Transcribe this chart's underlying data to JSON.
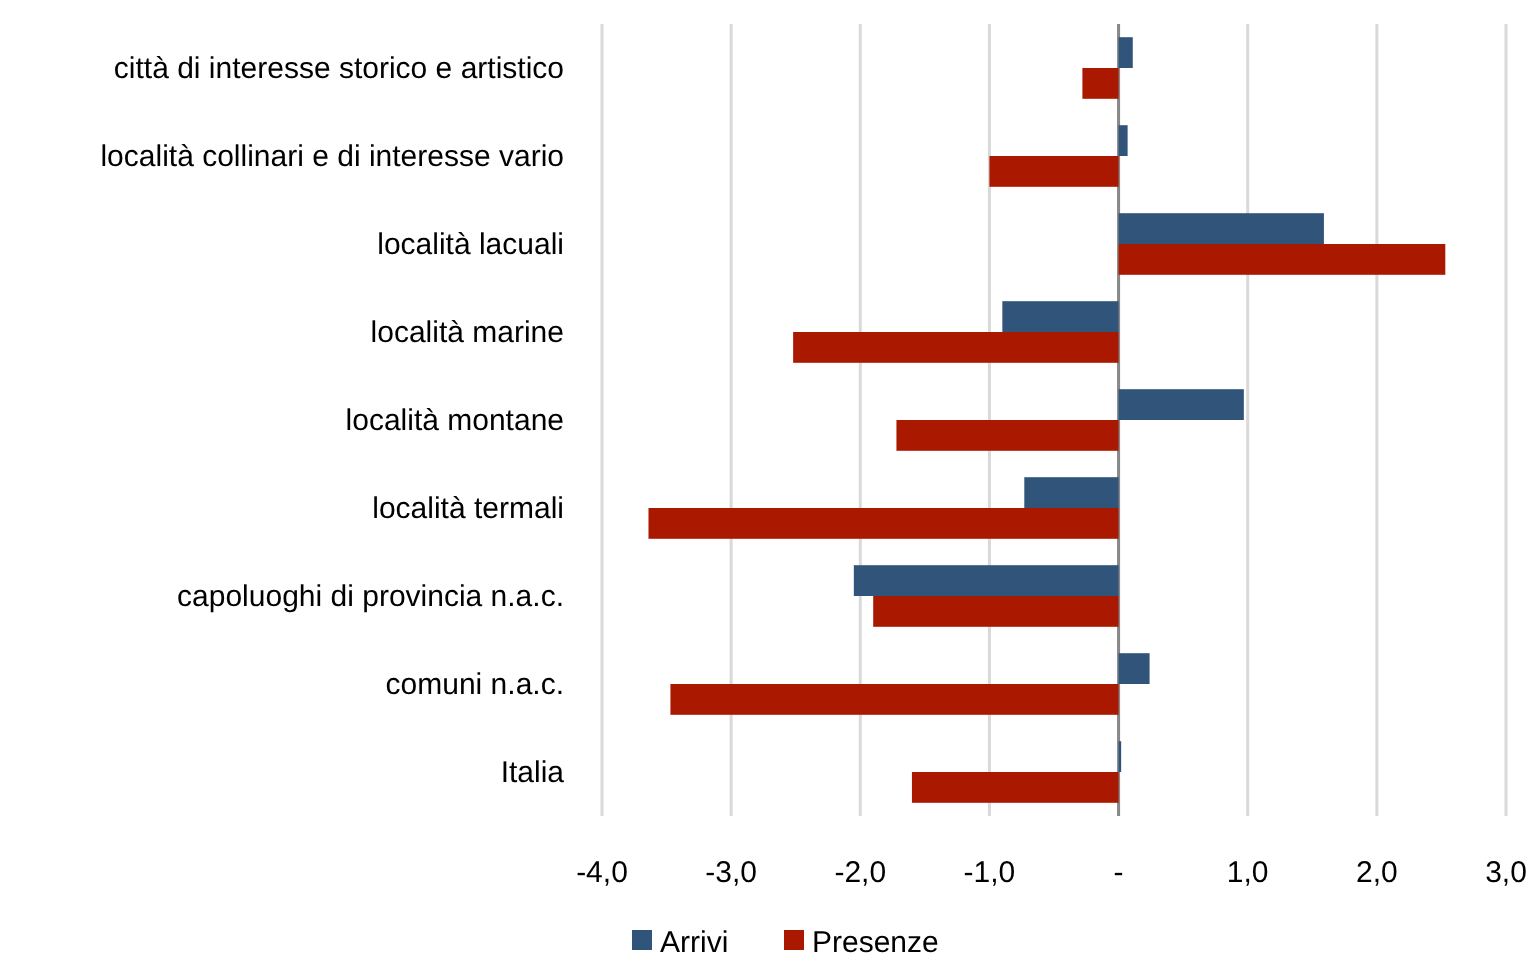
{
  "chart_data": {
    "type": "bar",
    "orientation": "horizontal",
    "categories": [
      "città di interesse storico e artistico",
      "località collinari e di interesse vario",
      "località lacuali",
      "località marine",
      "località montane",
      "località termali",
      "capoluoghi di provincia  n.a.c.",
      "comuni  n.a.c.",
      "Italia"
    ],
    "series": [
      {
        "name": "Arrivi",
        "color": "#30547a",
        "values": [
          0.11,
          0.07,
          1.59,
          -0.9,
          0.97,
          -0.73,
          -2.05,
          0.24,
          0.02
        ]
      },
      {
        "name": "Presenze",
        "color": "#aa1800",
        "values": [
          -0.28,
          -1.0,
          2.53,
          -2.52,
          -1.72,
          -3.64,
          -1.9,
          -3.47,
          -1.6
        ]
      }
    ],
    "xlim": [
      -4,
      3
    ],
    "xticks": [
      {
        "value": -4,
        "label": "-4,0"
      },
      {
        "value": -3,
        "label": "-3,0"
      },
      {
        "value": -2,
        "label": "-2,0"
      },
      {
        "value": -1,
        "label": "-1,0"
      },
      {
        "value": 0,
        "label": "-"
      },
      {
        "value": 1,
        "label": "1,0"
      },
      {
        "value": 2,
        "label": "2,0"
      },
      {
        "value": 3,
        "label": "3,0"
      }
    ],
    "grid": "x",
    "legend": "bottom"
  }
}
